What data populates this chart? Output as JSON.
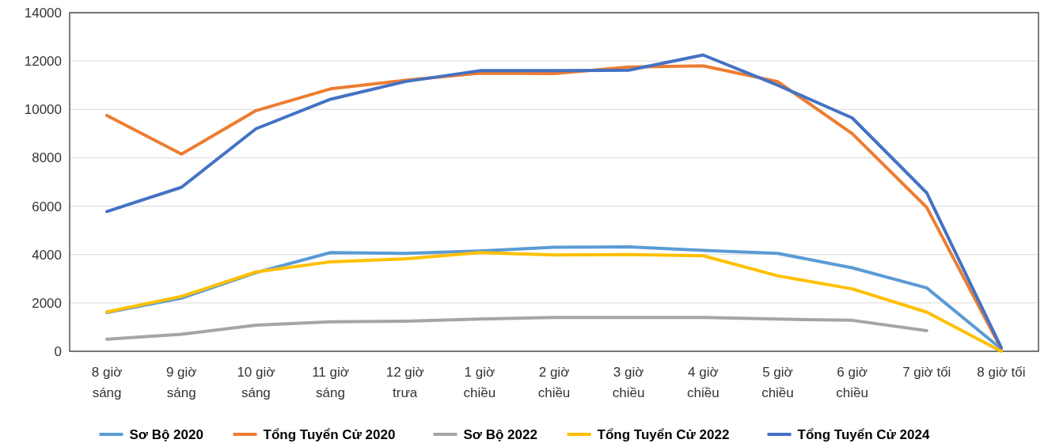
{
  "chart_data": {
    "type": "line",
    "categories": [
      "8 giờ sáng",
      "9 giờ sáng",
      "10 giờ sáng",
      "11 giờ sáng",
      "12 giờ trưa",
      "1 giờ chiều",
      "2 giờ chiều",
      "3 giờ chiều",
      "4 giờ chiều",
      "5 giờ chiều",
      "6 giờ chiều",
      "7 giờ tối",
      "8 giờ tối"
    ],
    "series": [
      {
        "name": "Sơ Bộ 2020",
        "color": "#5b9bd5",
        "values": [
          1600,
          2200,
          3250,
          4080,
          4050,
          4150,
          4300,
          4320,
          4170,
          4050,
          3450,
          2620,
          100
        ]
      },
      {
        "name": "Tổng Tuyển Cử 2020",
        "color": "#ed7d31",
        "values": [
          9750,
          8150,
          9950,
          10850,
          11200,
          11500,
          11480,
          11750,
          11800,
          11150,
          9000,
          5950,
          100
        ]
      },
      {
        "name": "Sơ Bộ 2022",
        "color": "#a5a5a5",
        "values": [
          500,
          700,
          1080,
          1220,
          1240,
          1330,
          1400,
          1400,
          1400,
          1330,
          1280,
          850,
          null
        ]
      },
      {
        "name": "Tổng Tuyển Cử 2022",
        "color": "#ffc000",
        "values": [
          1630,
          2270,
          3280,
          3700,
          3820,
          4080,
          3980,
          4000,
          3950,
          3120,
          2580,
          1620,
          0
        ]
      },
      {
        "name": "Tổng Tuyển Cử 2024",
        "color": "#4472c4",
        "values": [
          5780,
          6780,
          9200,
          10420,
          11150,
          11600,
          11600,
          11620,
          12250,
          11000,
          9650,
          6550,
          150
        ]
      }
    ],
    "ylim": [
      0,
      14000
    ],
    "yticks": [
      0,
      2000,
      4000,
      6000,
      8000,
      10000,
      12000,
      14000
    ],
    "grid": "y",
    "legend": "bottom",
    "marker": "none",
    "line_style": "solid"
  }
}
